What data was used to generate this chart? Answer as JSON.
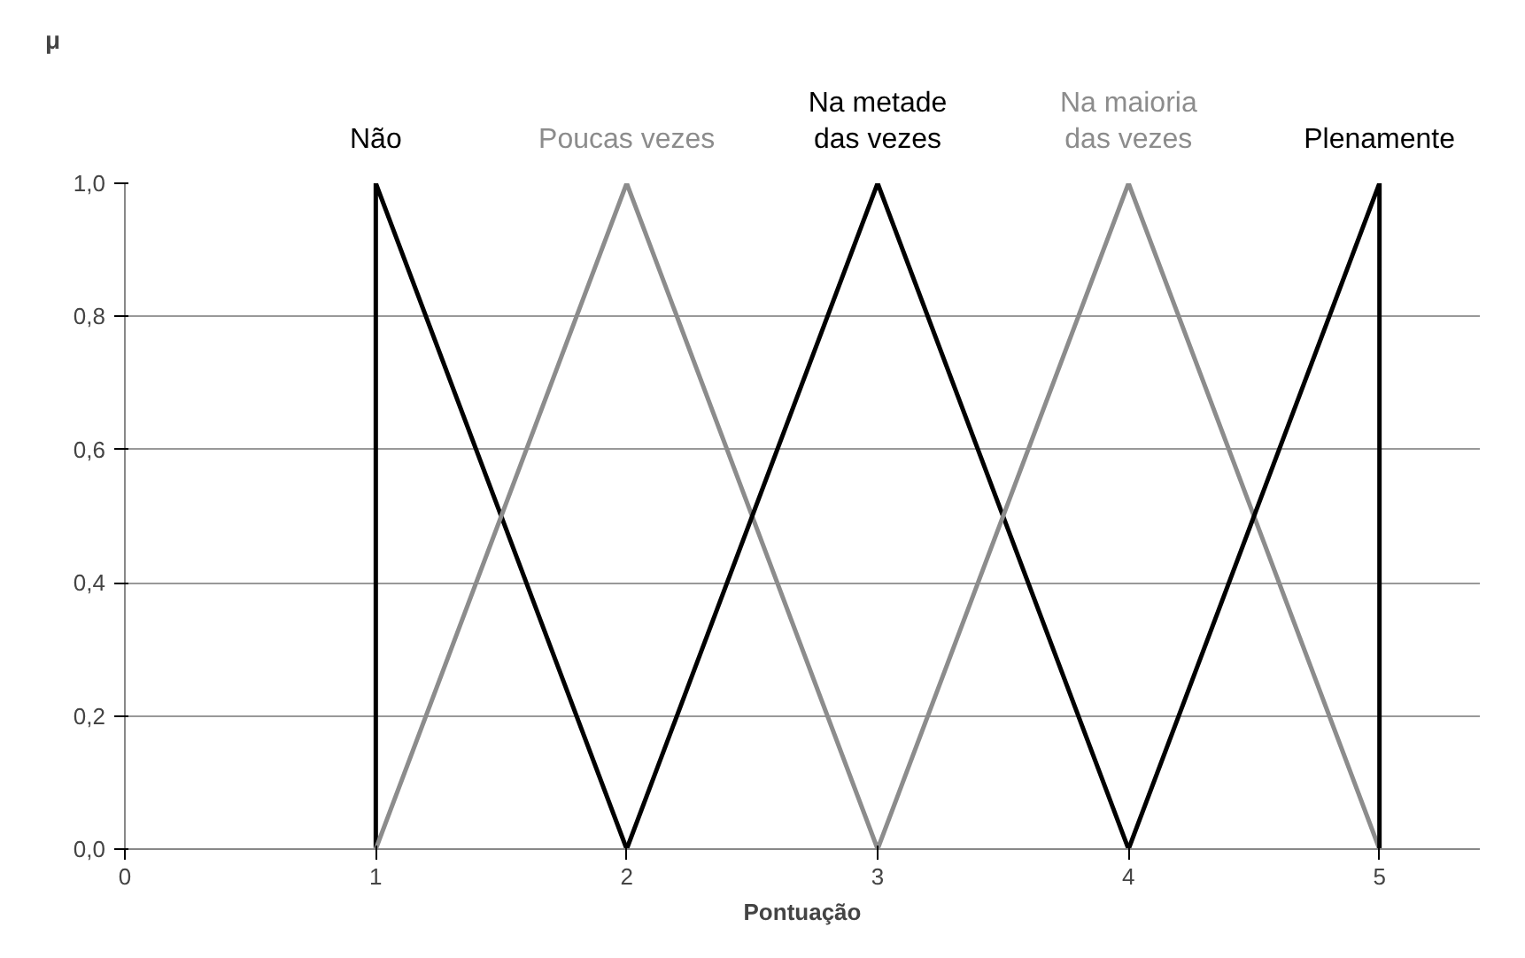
{
  "chart_data": {
    "type": "line",
    "xlabel": "Pontuação",
    "ylabel": "μ",
    "xlim": [
      0,
      5.4
    ],
    "ylim": [
      0,
      1
    ],
    "xticks": [
      0,
      1,
      2,
      3,
      4,
      5
    ],
    "yticks": [
      {
        "value": 0,
        "label": "0,0"
      },
      {
        "value": 0.2,
        "label": "0,2"
      },
      {
        "value": 0.4,
        "label": "0,4"
      },
      {
        "value": 0.6,
        "label": "0,6"
      },
      {
        "value": 0.8,
        "label": "0,8"
      },
      {
        "value": 1,
        "label": "1,0"
      }
    ],
    "grid": "y",
    "marker": "none",
    "line_style": "solid",
    "series": [
      {
        "name": "Não",
        "color": "#000000",
        "x": [
          1,
          1,
          2
        ],
        "values": [
          0,
          1,
          0
        ]
      },
      {
        "name": "Poucas vezes",
        "color": "#8c8c8c",
        "x": [
          1,
          2,
          3
        ],
        "values": [
          0,
          1,
          0
        ]
      },
      {
        "name": "Na metade\ndas vezes",
        "color": "#000000",
        "x": [
          2,
          3,
          4
        ],
        "values": [
          0,
          1,
          0
        ]
      },
      {
        "name": "Na maioria\ndas vezes",
        "color": "#8c8c8c",
        "x": [
          3,
          4,
          5
        ],
        "values": [
          0,
          1,
          0
        ]
      },
      {
        "name": "Plenamente",
        "color": "#000000",
        "x": [
          4,
          5,
          5
        ],
        "values": [
          0,
          1,
          0
        ]
      }
    ]
  }
}
